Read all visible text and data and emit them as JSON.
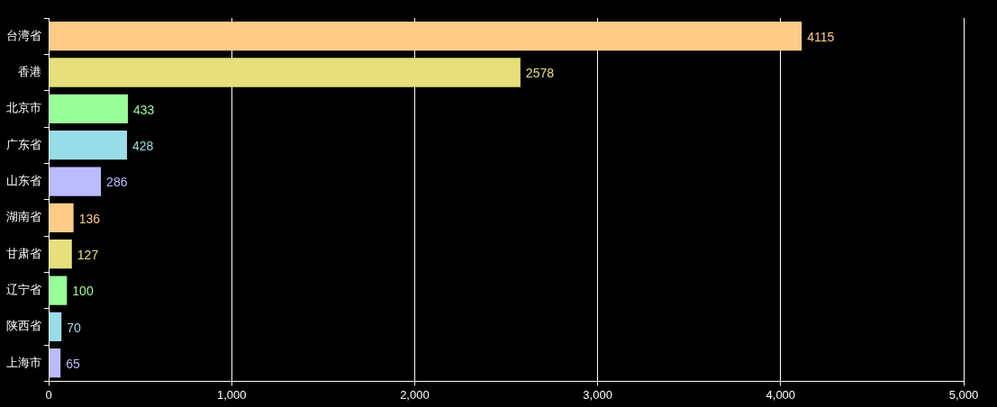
{
  "chart_data": {
    "type": "bar",
    "orientation": "horizontal",
    "categories": [
      "台湾省",
      "香港",
      "北京市",
      "广东省",
      "山东省",
      "湖南省",
      "甘肃省",
      "辽宁省",
      "陕西省",
      "上海市"
    ],
    "values": [
      4115,
      2578,
      433,
      428,
      286,
      136,
      127,
      100,
      70,
      65
    ],
    "colors": [
      "#ffcc88",
      "#e6e07c",
      "#99ff99",
      "#99dde8",
      "#bbbbff",
      "#ffcc88",
      "#e6e07c",
      "#99ff99",
      "#99dde8",
      "#bbbbff"
    ],
    "xlim": [
      0,
      5000
    ],
    "xticks": [
      0,
      {
        "value": 1000,
        "label": "1,000"
      },
      {
        "value": 2000,
        "label": "2,000"
      },
      {
        "value": 3000,
        "label": "3,000"
      },
      {
        "value": 4000,
        "label": "4,000"
      },
      {
        "value": 5000,
        "label": "5,000"
      }
    ],
    "grid": "x",
    "data_labels": true
  }
}
